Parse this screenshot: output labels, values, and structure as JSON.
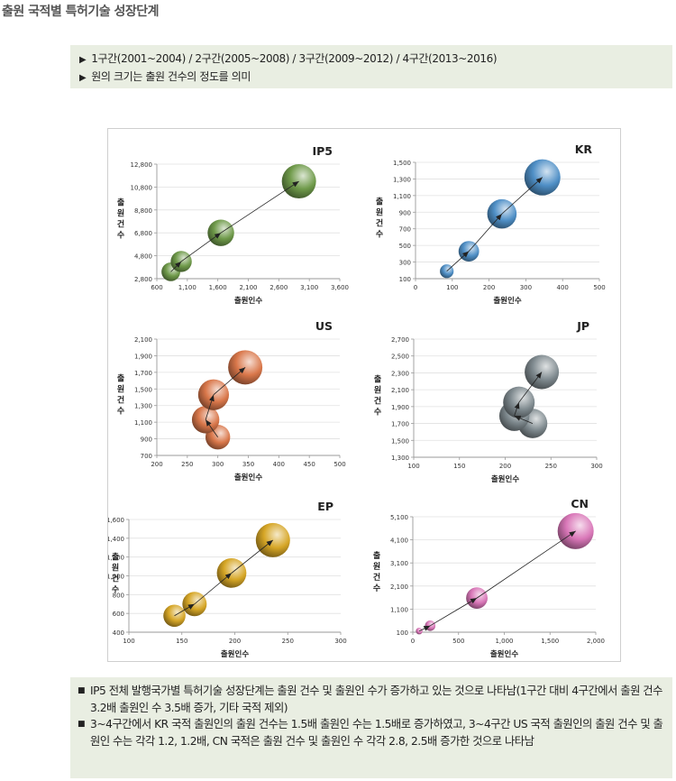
{
  "page_title": "출원 국적별 특허기술 성장단계",
  "notes": [
    "1구간(2001~2004) / 2구간(2005~2008) / 3구간(2009~2012) / 4구간(2013~2016)",
    "원의 크기는 출원 건수의 정도를 의미"
  ],
  "summary": {
    "marker": "■",
    "items": [
      "IP5 전체 발행국가별 특허기술 성장단계는 출원 건수 및 출원인 수가 증가하고 있는 것으로 나타남(1구간 대비 4구간에서 출원 건수 3.2배 출원인 수 3.5배 증가, 기타 국적 제외)",
      "3~4구간에서 KR 국적 출원인의 출원 건수는 1.5배 출원인 수는 1.5배로 증가하였고, 3~4구간 US 국적 출원인의 출원 건수 및 출원인 수는 각각 1.2, 1.2배, CN 국적은 출원 건수 및 출원인 수 각각 2.8, 2.5배 증가한 것으로 나타남"
    ]
  },
  "chart_data": [
    {
      "type": "scatter",
      "title": "IP5",
      "xlabel": "출원인수",
      "ylabel": "출원건수",
      "xlim": [
        600,
        3600
      ],
      "ylim": [
        2800,
        12800
      ],
      "xticks": [
        "600",
        "1,100",
        "1,600",
        "2,100",
        "2,600",
        "3,100",
        "3,600"
      ],
      "yticks": [
        "2,800",
        "4,800",
        "6,800",
        "8,800",
        "10,800",
        "12,800"
      ],
      "color": "#6f9a4a",
      "points": [
        {
          "x": 830,
          "y": 3400
        },
        {
          "x": 1000,
          "y": 4300
        },
        {
          "x": 1650,
          "y": 6800
        },
        {
          "x": 2930,
          "y": 11300
        }
      ]
    },
    {
      "type": "scatter",
      "title": "KR",
      "xlabel": "출원인수",
      "ylabel": "출원건수",
      "xlim": [
        0,
        500
      ],
      "ylim": [
        100,
        1500
      ],
      "xticks": [
        "0",
        "100",
        "200",
        "300",
        "400",
        "500"
      ],
      "yticks": [
        "100",
        "300",
        "500",
        "700",
        "900",
        "1,100",
        "1,300",
        "1,500"
      ],
      "color": "#4f8fc6",
      "points": [
        {
          "x": 85,
          "y": 190
        },
        {
          "x": 145,
          "y": 430
        },
        {
          "x": 235,
          "y": 880
        },
        {
          "x": 345,
          "y": 1320
        }
      ]
    },
    {
      "type": "scatter",
      "title": "US",
      "xlabel": "출원인수",
      "ylabel": "출원건수",
      "xlim": [
        200,
        500
      ],
      "ylim": [
        700,
        2100
      ],
      "xticks": [
        "200",
        "250",
        "300",
        "350",
        "400",
        "450",
        "500"
      ],
      "yticks": [
        "700",
        "900",
        "1,100",
        "1,300",
        "1,500",
        "1,700",
        "1,900",
        "2,100"
      ],
      "color": "#d9774a",
      "points": [
        {
          "x": 300,
          "y": 920
        },
        {
          "x": 280,
          "y": 1130
        },
        {
          "x": 293,
          "y": 1430
        },
        {
          "x": 345,
          "y": 1760
        }
      ]
    },
    {
      "type": "scatter",
      "title": "JP",
      "xlabel": "출원인수",
      "ylabel": "출원건수",
      "xlim": [
        100,
        300
      ],
      "ylim": [
        1300,
        2700
      ],
      "xticks": [
        "100",
        "150",
        "200",
        "250",
        "300"
      ],
      "yticks": [
        "1,300",
        "1,500",
        "1,700",
        "1,900",
        "2,100",
        "2,300",
        "2,500",
        "2,700"
      ],
      "color": "#7f8a8f",
      "points": [
        {
          "x": 230,
          "y": 1700
        },
        {
          "x": 210,
          "y": 1790
        },
        {
          "x": 215,
          "y": 1950
        },
        {
          "x": 240,
          "y": 2310
        }
      ]
    },
    {
      "type": "scatter",
      "title": "EP",
      "xlabel": "출원인수",
      "ylabel": "출원건수",
      "xlim": [
        100,
        300
      ],
      "ylim": [
        400,
        1600
      ],
      "xticks": [
        "100",
        "150",
        "200",
        "250",
        "300"
      ],
      "yticks": [
        "400",
        "600",
        "800",
        "1,000",
        "1,200",
        "1,400",
        "1,600"
      ],
      "color": "#d6a626",
      "points": [
        {
          "x": 143,
          "y": 575
        },
        {
          "x": 162,
          "y": 700
        },
        {
          "x": 197,
          "y": 1030
        },
        {
          "x": 236,
          "y": 1380
        }
      ]
    },
    {
      "type": "scatter",
      "title": "CN",
      "xlabel": "출원인수",
      "ylabel": "출원건수",
      "xlim": [
        0,
        2000
      ],
      "ylim": [
        100,
        5100
      ],
      "xticks": [
        "0",
        "500",
        "1,000",
        "1,500",
        "2,000"
      ],
      "yticks": [
        "100",
        "1,100",
        "2,100",
        "3,100",
        "4,100",
        "5,100"
      ],
      "color": "#d977b8",
      "points": [
        {
          "x": 70,
          "y": 150
        },
        {
          "x": 190,
          "y": 380
        },
        {
          "x": 700,
          "y": 1580
        },
        {
          "x": 1780,
          "y": 4480
        }
      ]
    }
  ]
}
